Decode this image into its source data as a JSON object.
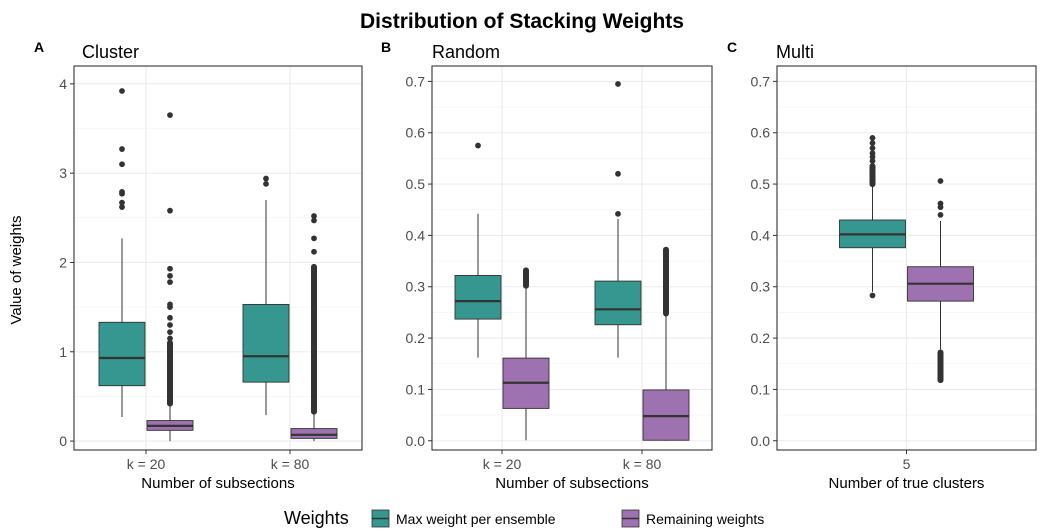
{
  "title": "Distribution of Stacking Weights",
  "ylabel": "Value of weights",
  "legend": {
    "title": "Weights",
    "items": [
      {
        "label": "Max weight per ensemble",
        "color": "#35978f"
      },
      {
        "label": "Remaining weights",
        "color": "#9e71b0"
      }
    ]
  },
  "chart_data": [
    {
      "type": "box",
      "tag": "A",
      "title": "Cluster",
      "xlabel": "Number of subsections",
      "ylim": [
        -0.1,
        4.2
      ],
      "yticks": [
        0,
        1,
        2,
        3,
        4
      ],
      "ytick_labels": [
        "0",
        "1",
        "2",
        "3",
        "4"
      ],
      "categories": [
        "k = 20",
        "k = 80"
      ],
      "series": [
        {
          "name": "Max weight per ensemble",
          "boxes": [
            {
              "min": 0.27,
              "q1": 0.62,
              "median": 0.93,
              "q3": 1.33,
              "max": 2.27,
              "outliers": [
                2.62,
                2.67,
                2.77,
                2.79,
                3.1,
                3.27,
                3.92
              ]
            },
            {
              "min": 0.29,
              "q1": 0.66,
              "median": 0.95,
              "q3": 1.53,
              "max": 2.7,
              "outliers": [
                2.88,
                2.94
              ]
            }
          ]
        },
        {
          "name": "Remaining weights",
          "boxes": [
            {
              "min": 0.0,
              "q1": 0.12,
              "median": 0.17,
              "q3": 0.23,
              "max": 0.4,
              "outliers_dense": [
                0.42,
                1.1
              ],
              "outliers": [
                1.15,
                1.22,
                1.3,
                1.38,
                1.5,
                1.53,
                1.78,
                1.85,
                1.93,
                2.58,
                3.65
              ]
            },
            {
              "min": 0.0,
              "q1": 0.03,
              "median": 0.07,
              "q3": 0.14,
              "max": 0.32,
              "outliers_dense": [
                0.33,
                1.95
              ],
              "outliers": [
                2.12,
                2.27,
                2.47,
                2.52
              ]
            }
          ]
        }
      ]
    },
    {
      "type": "box",
      "tag": "B",
      "title": "Random",
      "xlabel": "Number of subsections",
      "ylim": [
        -0.018,
        0.73
      ],
      "yticks": [
        0.0,
        0.1,
        0.2,
        0.3,
        0.4,
        0.5,
        0.6,
        0.7
      ],
      "ytick_labels": [
        "0.0",
        "0.1",
        "0.2",
        "0.3",
        "0.4",
        "0.5",
        "0.6",
        "0.7"
      ],
      "categories": [
        "k = 20",
        "k = 80"
      ],
      "series": [
        {
          "name": "Max weight per ensemble",
          "boxes": [
            {
              "min": 0.162,
              "q1": 0.237,
              "median": 0.272,
              "q3": 0.322,
              "max": 0.442,
              "outliers": [
                0.575
              ]
            },
            {
              "min": 0.162,
              "q1": 0.226,
              "median": 0.256,
              "q3": 0.311,
              "max": 0.432,
              "outliers": [
                0.442,
                0.52,
                0.695
              ]
            }
          ]
        },
        {
          "name": "Remaining weights",
          "boxes": [
            {
              "min": 0.001,
              "q1": 0.063,
              "median": 0.113,
              "q3": 0.161,
              "max": 0.3,
              "outliers_dense": [
                0.302,
                0.332
              ],
              "outliers": []
            },
            {
              "min": 0.0,
              "q1": 0.001,
              "median": 0.048,
              "q3": 0.099,
              "max": 0.245,
              "outliers_dense": [
                0.248,
                0.372
              ],
              "outliers": []
            }
          ]
        }
      ]
    },
    {
      "type": "box",
      "tag": "C",
      "title": "Multi",
      "xlabel": "Number of true clusters",
      "ylim": [
        -0.018,
        0.73
      ],
      "yticks": [
        0.0,
        0.1,
        0.2,
        0.3,
        0.4,
        0.5,
        0.6,
        0.7
      ],
      "ytick_labels": [
        "0.0",
        "0.1",
        "0.2",
        "0.3",
        "0.4",
        "0.5",
        "0.6",
        "0.7"
      ],
      "categories": [
        "5"
      ],
      "series": [
        {
          "name": "Max weight per ensemble",
          "boxes": [
            {
              "min": 0.29,
              "q1": 0.376,
              "median": 0.402,
              "q3": 0.43,
              "max": 0.498,
              "outliers_dense": [
                0.5,
                0.535
              ],
              "outliers": [
                0.283,
                0.545,
                0.553,
                0.56,
                0.57,
                0.58,
                0.59
              ]
            }
          ]
        },
        {
          "name": "Remaining weights",
          "boxes": [
            {
              "min": 0.178,
              "q1": 0.272,
              "median": 0.306,
              "q3": 0.339,
              "max": 0.428,
              "outliers_dense": [
                0.118,
                0.172
              ],
              "outliers": [
                0.44,
                0.455,
                0.462,
                0.506
              ]
            }
          ]
        }
      ]
    }
  ]
}
